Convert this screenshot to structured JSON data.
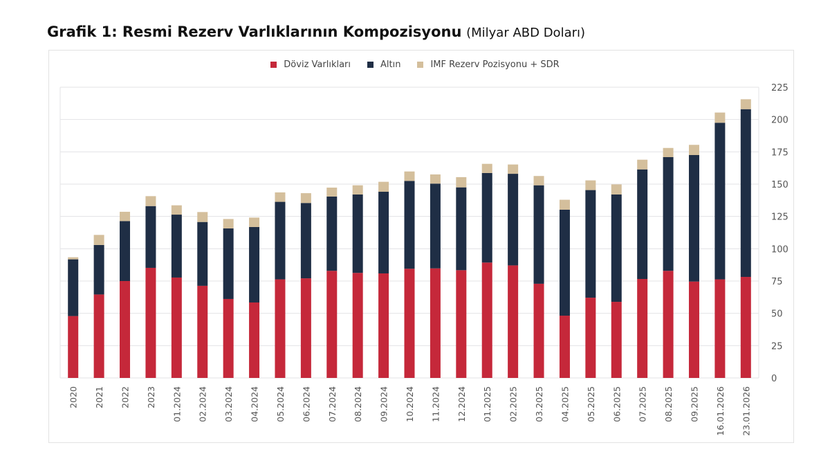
{
  "title": "Grafik 1: Resmi Rezerv Varlıklarının Kompozisyonu",
  "unit": "(Milyar ABD Doları)",
  "colors": {
    "doviz": "#c5283a",
    "altin": "#1f2e45",
    "imf": "#d4bf9c",
    "grid": "#e3e3e6",
    "text": "#555555"
  },
  "chart_data": {
    "type": "bar",
    "stacked": true,
    "title": "Grafik 1: Resmi Rezerv Varlıklarının Kompozisyonu (Milyar ABD Doları)",
    "xlabel": "",
    "ylabel": "",
    "ylim": [
      0,
      225
    ],
    "yticks": [
      "0",
      "25",
      "50",
      "75",
      "100",
      "125",
      "150",
      "175",
      "200",
      "225"
    ],
    "ytick_values": [
      0,
      25,
      50,
      75,
      100,
      125,
      150,
      175,
      200,
      225
    ],
    "y_axis_side": "right",
    "grid": true,
    "legend_position": "top-center",
    "categories": [
      "2020",
      "2021",
      "2022",
      "2023",
      "01.2024",
      "02.2024",
      "03.2024",
      "04.2024",
      "05.2024",
      "06.2024",
      "07.2024",
      "08.2024",
      "09.2024",
      "10.2024",
      "11.2024",
      "12.2024",
      "01.2025",
      "02.2025",
      "03.2025",
      "04.2025",
      "05.2025",
      "06.2025",
      "07.2025",
      "08.2025",
      "09.2025",
      "16.01.2026",
      "23.01.2026"
    ],
    "series": [
      {
        "name": "Döviz Varlıkları",
        "key": "doviz",
        "values": [
          47.9,
          64.6,
          75.0,
          85.2,
          77.7,
          71.3,
          61.1,
          58.4,
          76.3,
          77.1,
          82.9,
          81.3,
          80.9,
          84.5,
          84.8,
          83.4,
          89.3,
          87.1,
          72.9,
          48.2,
          62.1,
          58.9,
          76.6,
          82.9,
          74.6,
          76.3,
          78.2
        ]
      },
      {
        "name": "Altın",
        "key": "altin",
        "values": [
          43.9,
          38.3,
          46.4,
          47.8,
          48.7,
          49.4,
          54.6,
          58.4,
          60.0,
          58.3,
          57.5,
          60.7,
          63.2,
          68.0,
          65.6,
          64.1,
          69.3,
          70.9,
          76.2,
          82.0,
          83.3,
          83.1,
          84.8,
          88.0,
          97.9,
          121.2,
          129.8
        ]
      },
      {
        "name": "IMF Rezerv Pozisyonu + SDR",
        "key": "imf",
        "values": [
          1.6,
          7.8,
          7.2,
          7.7,
          7.2,
          7.7,
          7.3,
          7.3,
          7.3,
          7.6,
          6.9,
          7.1,
          7.7,
          7.3,
          7.1,
          7.9,
          7.1,
          7.2,
          7.2,
          7.7,
          7.5,
          7.8,
          7.5,
          7.1,
          7.9,
          7.9,
          7.7
        ]
      }
    ]
  }
}
